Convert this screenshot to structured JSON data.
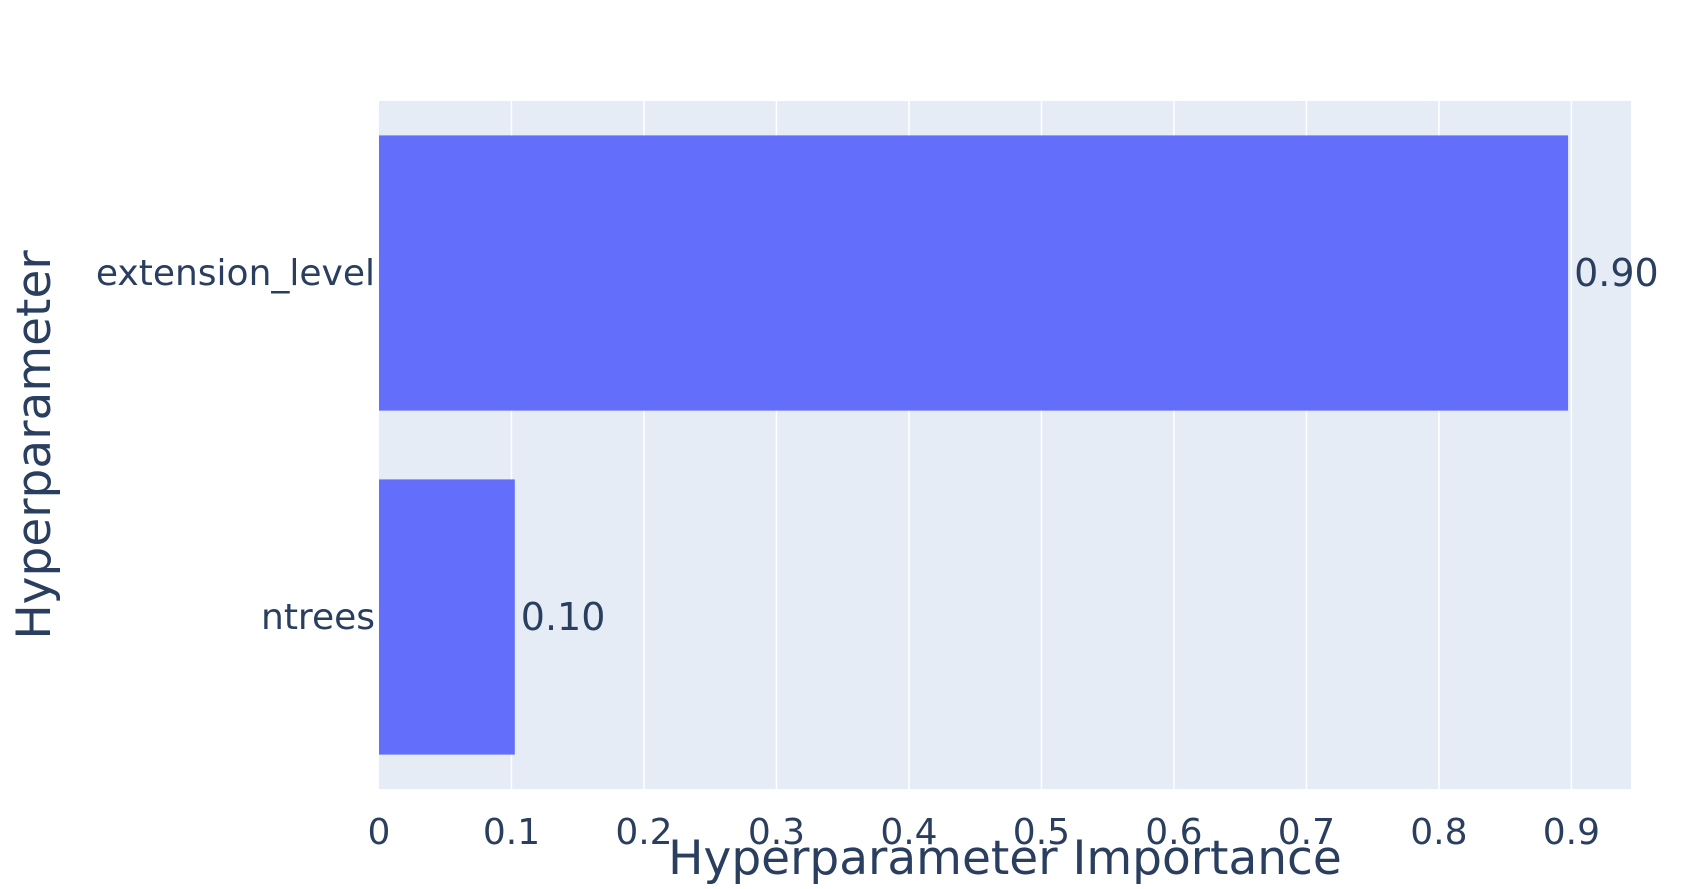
{
  "chart_data": {
    "type": "bar",
    "orientation": "horizontal",
    "categories": [
      "extension_level",
      "ntrees"
    ],
    "values": [
      0.8975,
      0.1025
    ],
    "value_labels": [
      "0.90",
      "0.10"
    ],
    "xlabel": "Hyperparameter Importance",
    "ylabel": "Hyperparameter",
    "xlim": [
      0,
      0.945
    ],
    "xticks": [
      0,
      0.1,
      0.2,
      0.3,
      0.4,
      0.5,
      0.6,
      0.7,
      0.8,
      0.9
    ],
    "xtick_labels": [
      "0",
      "0.1",
      "0.2",
      "0.3",
      "0.4",
      "0.5",
      "0.6",
      "0.7",
      "0.8",
      "0.9"
    ],
    "grid": true,
    "legend": "none",
    "colors": {
      "bar": "#636efa",
      "plot_background": "#e5ecf6",
      "grid": "#ffffff",
      "text": "#2a3f5f"
    }
  }
}
